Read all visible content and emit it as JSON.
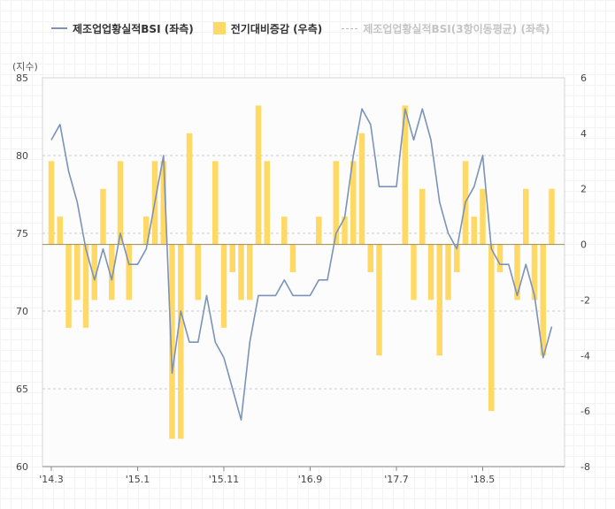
{
  "legend": {
    "item1": "제조업업황실적BSI (좌측)",
    "item2": "전기대비증감 (우측)",
    "item3": "제조업업황실적BSI(3항이동평균) (좌측)"
  },
  "unit_label": "(지수)",
  "colors": {
    "line": "#7b93b8",
    "bar": "#ffd966",
    "zero_line": "#9c8a52",
    "grid": "#cccccc"
  },
  "chart_data": {
    "type": "bar+line",
    "x_tick_labels": [
      "'14.3",
      "'15.1",
      "'15.11",
      "'16.9",
      "'17.7",
      "'18.5"
    ],
    "x_tick_index": [
      0,
      10,
      20,
      30,
      40,
      50
    ],
    "left_axis": {
      "ylim": [
        60,
        85
      ],
      "ticks": [
        60,
        65,
        70,
        75,
        80,
        85
      ]
    },
    "right_axis": {
      "ylim": [
        -8,
        6
      ],
      "ticks": [
        -8,
        -6,
        -4,
        -2,
        0,
        2,
        4,
        6
      ]
    },
    "series": [
      {
        "name": "제조업업황실적BSI (좌측)",
        "axis": "left",
        "type": "line",
        "values": [
          81,
          82,
          79,
          77,
          74,
          72,
          74,
          72,
          75,
          73,
          73,
          74,
          77,
          80,
          66,
          70,
          68,
          68,
          71,
          68,
          67,
          65,
          63,
          68,
          71,
          71,
          71,
          72,
          71,
          71,
          71,
          72,
          72,
          75,
          76,
          80,
          83,
          82,
          78,
          78,
          78,
          83,
          81,
          83,
          81,
          77,
          75,
          74,
          77,
          78,
          80,
          74,
          73,
          73,
          71,
          73,
          71,
          67,
          69
        ]
      },
      {
        "name": "전기대비증감 (우측)",
        "axis": "right",
        "type": "bar",
        "values": [
          3,
          1,
          -3,
          -2,
          -3,
          -2,
          2,
          -2,
          3,
          -2,
          0,
          1,
          3,
          3,
          -7,
          -7,
          4,
          -2,
          0,
          3,
          -3,
          -1,
          -2,
          -2,
          5,
          3,
          0,
          1,
          -1,
          0,
          0,
          1,
          0,
          3,
          1,
          3,
          4,
          -1,
          -4,
          0,
          0,
          5,
          -2,
          2,
          -2,
          -4,
          -2,
          -1,
          3,
          1,
          2,
          -6,
          -1,
          0,
          -2,
          2,
          -2,
          -4,
          2
        ]
      }
    ]
  }
}
